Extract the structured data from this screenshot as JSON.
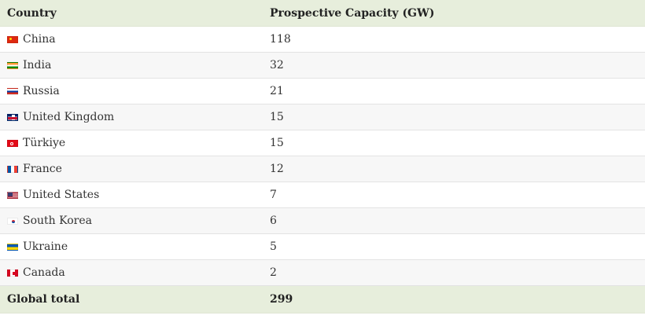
{
  "table": {
    "headers": {
      "country": "Country",
      "capacity": "Prospective Capacity (GW)"
    },
    "rows": [
      {
        "country": "China",
        "capacity": "118",
        "flag": "flag-china-icon"
      },
      {
        "country": "India",
        "capacity": "32",
        "flag": "flag-india-icon"
      },
      {
        "country": "Russia",
        "capacity": "21",
        "flag": "flag-russia-icon"
      },
      {
        "country": "United Kingdom",
        "capacity": "15",
        "flag": "flag-united-kingdom-icon"
      },
      {
        "country": "Türkiye",
        "capacity": "15",
        "flag": "flag-turkiye-icon"
      },
      {
        "country": "France",
        "capacity": "12",
        "flag": "flag-france-icon"
      },
      {
        "country": "United States",
        "capacity": "7",
        "flag": "flag-united-states-icon"
      },
      {
        "country": "South Korea",
        "capacity": "6",
        "flag": "flag-south-korea-icon"
      },
      {
        "country": "Ukraine",
        "capacity": "5",
        "flag": "flag-ukraine-icon"
      },
      {
        "country": "Canada",
        "capacity": "2",
        "flag": "flag-canada-icon"
      }
    ],
    "total": {
      "label": "Global total",
      "capacity": "299"
    },
    "colors": {
      "header_background": "#e7eedc",
      "alt_row_background": "#f7f7f7",
      "row_border": "#e3e3e3"
    }
  }
}
